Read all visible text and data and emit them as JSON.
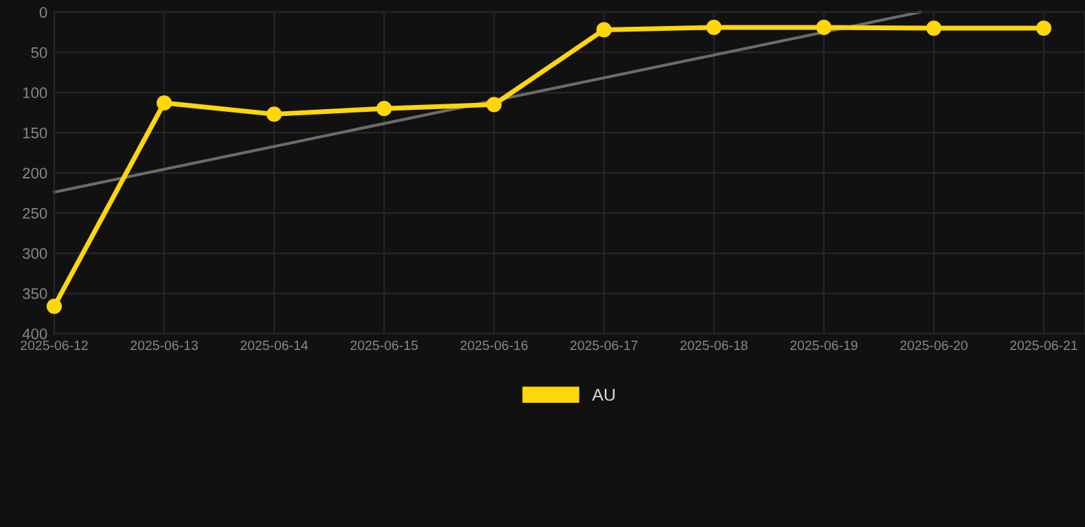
{
  "chart_data": {
    "type": "line",
    "x": [
      "2025-06-12",
      "2025-06-13",
      "2025-06-14",
      "2025-06-15",
      "2025-06-16",
      "2025-06-17",
      "2025-06-18",
      "2025-06-19",
      "2025-06-20",
      "2025-06-21"
    ],
    "series": [
      {
        "name": "AU",
        "color": "#ffd60a",
        "values": [
          366,
          113,
          127,
          120,
          115,
          22,
          19,
          19,
          20,
          20
        ],
        "marker": "circle"
      },
      {
        "type": "line",
        "color": "#6b6b6b",
        "x": [
          "2025-06-12",
          "2025-06-19T21:00"
        ],
        "values": [
          224,
          0
        ],
        "marker": "none"
      }
    ],
    "xlim": [
      "2025-06-12",
      "2025-06-21T09:00"
    ],
    "xticks": [
      {
        "value": "2025-06-12",
        "label": "2025-06-12"
      },
      {
        "value": "2025-06-13",
        "label": "2025-06-13"
      },
      {
        "value": "2025-06-14",
        "label": "2025-06-14"
      },
      {
        "value": "2025-06-15",
        "label": "2025-06-15"
      },
      {
        "value": "2025-06-16",
        "label": "2025-06-16"
      },
      {
        "value": "2025-06-17",
        "label": "2025-06-17"
      },
      {
        "value": "2025-06-18",
        "label": "2025-06-18"
      },
      {
        "value": "2025-06-19",
        "label": "2025-06-19"
      },
      {
        "value": "2025-06-20",
        "label": "2025-06-20"
      },
      {
        "value": "2025-06-21",
        "label": "2025-06-21"
      }
    ],
    "ylim": [
      400,
      0
    ],
    "yticks": [
      0,
      50,
      100,
      150,
      200,
      250,
      300,
      350,
      400
    ],
    "grid": true,
    "legend": "bottom",
    "line_style": "solid"
  }
}
